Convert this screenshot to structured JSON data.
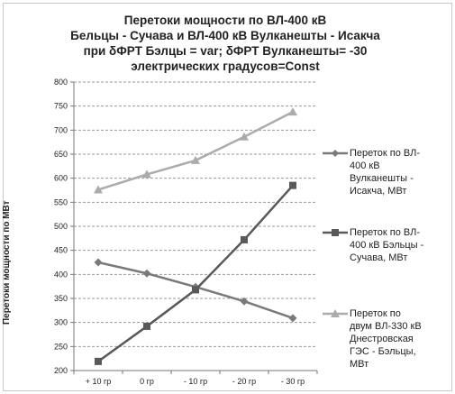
{
  "chart_data": {
    "type": "line",
    "title_lines": [
      "Перетоки мощности по ВЛ-400 кВ",
      "Бельцы - Сучава и ВЛ-400 кВ Вулканешты - Исакча",
      "при δФРТ  Бэлцы = var;  δФРТ Вулканешты= -30",
      "электрических градусов=Const"
    ],
    "ylabel": "Перетоки мощности по МВт",
    "xlabel": "",
    "categories": [
      "+ 10 гр",
      "0 гр",
      "- 10 гр",
      "- 20 гр",
      "- 30 гр"
    ],
    "ylim": [
      200,
      800
    ],
    "yticks": [
      "200",
      "250",
      "300",
      "350",
      "400",
      "450",
      "500",
      "550",
      "600",
      "650",
      "700",
      "750",
      "800"
    ],
    "grid": true,
    "legend_position": "right",
    "series": [
      {
        "name": "Переток по ВЛ-400 кВ Вулканешты - Исакча, МВт",
        "legend_lines": [
          "Переток по ВЛ-",
          "400 кВ",
          "Вулканешты -",
          "Исакча, МВт"
        ],
        "values": [
          425,
          402,
          374,
          344,
          309
        ],
        "color": "#7a7a7a",
        "marker": "diamond"
      },
      {
        "name": "Переток по ВЛ-400 кВ  Бэльцы - Сучава, МВт",
        "legend_lines": [
          "Переток по ВЛ-",
          "400 кВ  Бэльцы -",
          "Сучава, МВт"
        ],
        "values": [
          219,
          292,
          368,
          472,
          585
        ],
        "color": "#595959",
        "marker": "square"
      },
      {
        "name": "Переток по двум ВЛ-330 кВ Днестровская ГЭС - Бэльцы, МВт",
        "legend_lines": [
          "Переток по",
          "двум ВЛ-330 кВ",
          "Днестровская",
          "ГЭС - Бэльцы,",
          "МВт"
        ],
        "values": [
          576,
          608,
          637,
          686,
          738
        ],
        "color": "#ababab",
        "marker": "triangle"
      }
    ]
  }
}
